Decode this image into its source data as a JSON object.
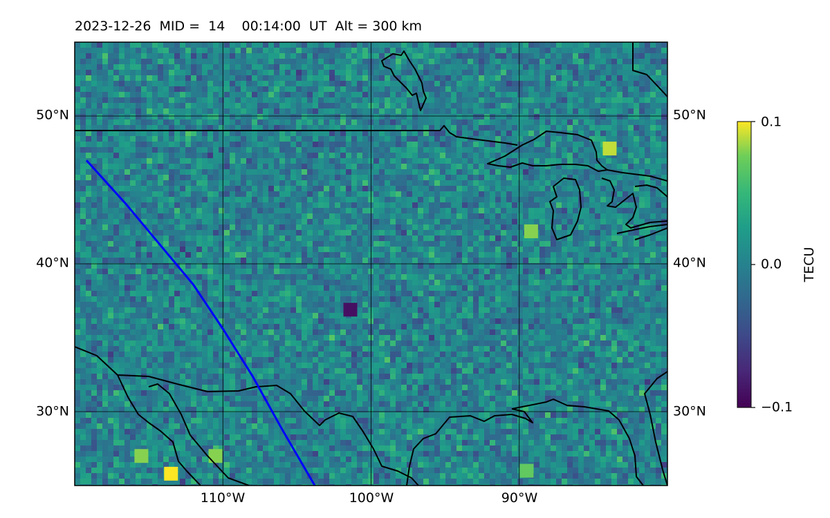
{
  "title": "2023-12-26  MID =  14    00:14:00  UT  Alt = 300 km",
  "map": {
    "lat_range": [
      25,
      55
    ],
    "lon_range": [
      -120,
      -80
    ],
    "lat_ticks": [
      {
        "value": 50,
        "label": "50°N"
      },
      {
        "value": 40,
        "label": "40°N"
      },
      {
        "value": 30,
        "label": "30°N"
      }
    ],
    "lon_ticks": [
      {
        "value": -110,
        "label": "110°W"
      },
      {
        "value": -100,
        "label": "100°W"
      },
      {
        "value": -90,
        "label": "90°W"
      }
    ],
    "grid": true,
    "field_description": "gridded TEC perturbation, mostly near 0 with scattered positive and negative cells",
    "hotspots": [
      {
        "lon": -113.5,
        "lat": 25.8,
        "value": 0.1
      },
      {
        "lon": -115.5,
        "lat": 27.0,
        "value": 0.08
      },
      {
        "lon": -110.5,
        "lat": 27.0,
        "value": 0.08
      },
      {
        "lon": -89.5,
        "lat": 26.0,
        "value": 0.07
      },
      {
        "lon": -89.2,
        "lat": 42.2,
        "value": 0.08
      },
      {
        "lon": -83.9,
        "lat": 47.8,
        "value": 0.09
      },
      {
        "lon": -101.4,
        "lat": 36.9,
        "value": -0.09
      }
    ],
    "track": {
      "color": "#0000ff",
      "points": [
        [
          -119.2,
          47.0
        ],
        [
          -116.5,
          44.0
        ],
        [
          -114,
          41
        ],
        [
          -112,
          38.6
        ],
        [
          -110,
          35.6
        ],
        [
          -108,
          32.4
        ],
        [
          -106,
          28.8
        ],
        [
          -103.8,
          25.0
        ]
      ]
    },
    "coastline_color": "#000000"
  },
  "colorbar": {
    "label": "TECU",
    "min": -0.1,
    "max": 0.1,
    "ticks": [
      {
        "value": 0.1,
        "label": "0.1"
      },
      {
        "value": 0.0,
        "label": "0.0"
      },
      {
        "value": -0.1,
        "label": "−0.1"
      }
    ],
    "colormap": "viridis"
  }
}
